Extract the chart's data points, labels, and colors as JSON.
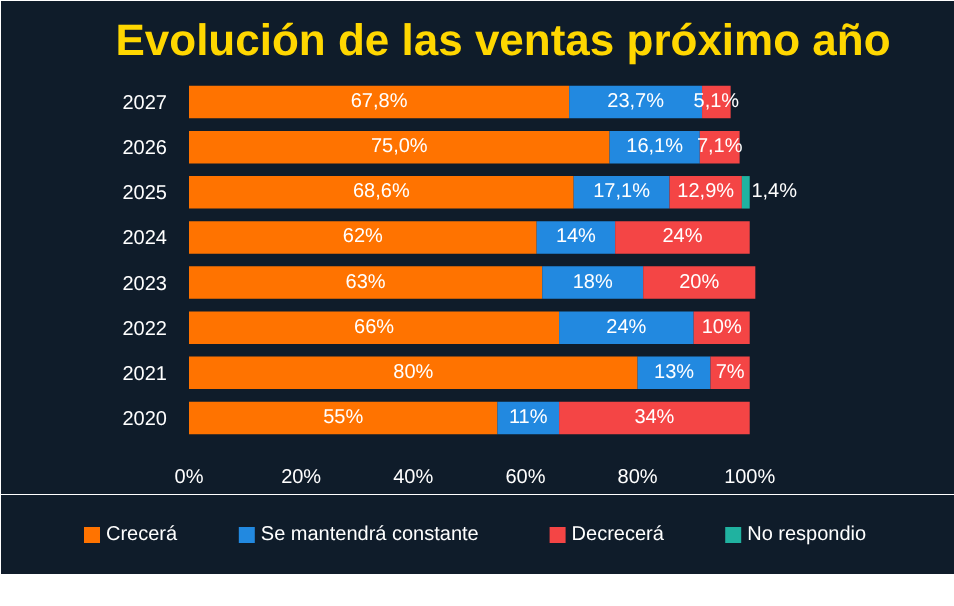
{
  "chart_data": {
    "type": "bar",
    "orientation": "horizontal",
    "stacked": true,
    "title": "Evolución de las ventas próximo año",
    "categories": [
      "2027",
      "2026",
      "2025",
      "2024",
      "2023",
      "2022",
      "2021",
      "2020"
    ],
    "series": [
      {
        "name": "Crecerá",
        "color": "#ff7300",
        "values": [
          67.8,
          75.0,
          68.6,
          62,
          63,
          66,
          80,
          55
        ],
        "value_labels": [
          "67,8%",
          "75,0%",
          "68,6%",
          "62%",
          "63%",
          "66%",
          "80%",
          "55%"
        ]
      },
      {
        "name": "Se mantendrá constante",
        "color": "#2289e0",
        "values": [
          23.7,
          16.1,
          17.1,
          14,
          18,
          24,
          13,
          11
        ],
        "value_labels": [
          "23,7%",
          "16,1%",
          "17,1%",
          "14%",
          "18%",
          "24%",
          "13%",
          "11%"
        ]
      },
      {
        "name": "Decrecerá",
        "color": "#f44545",
        "values": [
          5.1,
          7.1,
          12.9,
          24,
          20,
          10,
          7,
          34
        ],
        "value_labels": [
          "5,1%",
          "7,1%",
          "12,9%",
          "24%",
          "20%",
          "10%",
          "7%",
          "34%"
        ]
      },
      {
        "name": "No respondio",
        "color": "#20b2a0",
        "values": [
          null,
          null,
          1.4,
          null,
          null,
          null,
          null,
          null
        ],
        "value_labels": [
          null,
          null,
          "1,4%",
          null,
          null,
          null,
          null,
          null
        ]
      }
    ],
    "xlim": [
      0,
      112
    ],
    "xticks": [
      {
        "value": 0,
        "label": "0%"
      },
      {
        "value": 20,
        "label": "20%"
      },
      {
        "value": 40,
        "label": "40%"
      },
      {
        "value": 60,
        "label": "60%"
      },
      {
        "value": 80,
        "label": "80%"
      },
      {
        "value": 100,
        "label": "100%"
      }
    ],
    "grid": false,
    "legend": "bottom"
  }
}
